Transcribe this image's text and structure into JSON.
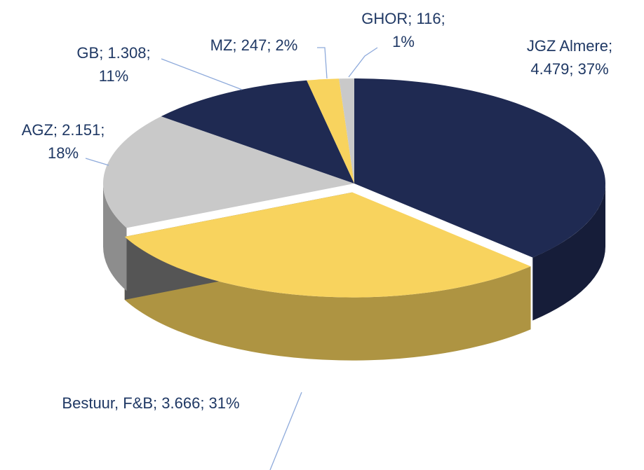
{
  "chart_data": {
    "type": "pie",
    "values": [
      4479,
      3666,
      2151,
      1308,
      247,
      116
    ],
    "value_labels": [
      [
        "JGZ Almere;",
        "4.479; 37%"
      ],
      [
        "Bestuur, F&B; 3.666; 31%"
      ],
      [
        "AGZ; 2.151;",
        "18%"
      ],
      [
        "GB; 1.308;",
        "11%"
      ],
      [
        "MZ; 247; 2%"
      ],
      [
        "GHOR; 116;",
        "1%"
      ]
    ],
    "colors": [
      "#1f2a52",
      "#f8d35e",
      "#c9c9c9",
      "#1f2a52",
      "#f8d35e",
      "#c9c9c9"
    ]
  }
}
